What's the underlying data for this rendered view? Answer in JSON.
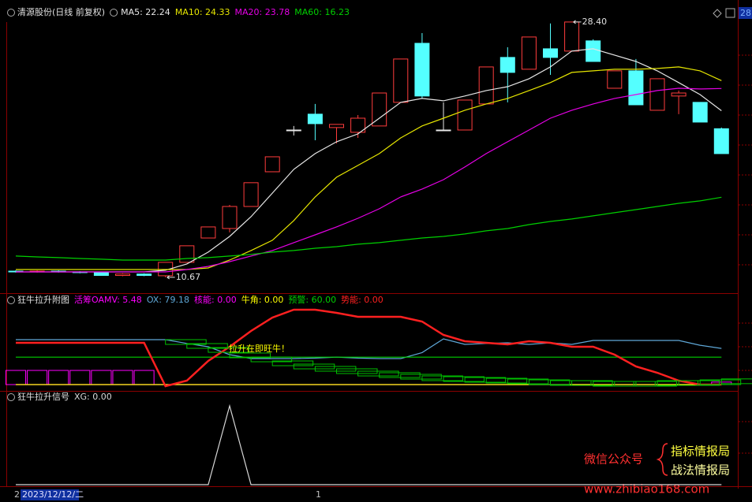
{
  "chart_data": [
    {
      "type": "candlestick",
      "title": "清源股份(日线 前复权)",
      "price_tag": "28",
      "up_color": "#ff3c3c",
      "down_color": "#54ffff",
      "flat_color": "#e8e8e8",
      "ylim": [
        9.57,
        29.49
      ],
      "open": [
        11.1,
        11.05,
        11.1,
        11.05,
        11.0,
        10.8,
        10.9,
        10.78,
        11.71,
        13.4,
        14.06,
        15.59,
        18.0,
        20.9,
        22.0,
        21.07,
        20.74,
        21.18,
        22.82,
        26.92,
        20.9,
        20.9,
        22.71,
        25.94,
        25.12,
        26.54,
        26.38,
        27.09,
        23.8,
        25.01,
        22.27,
        23.26,
        22.82,
        20.99
      ],
      "high": [
        11.16,
        11.16,
        11.16,
        11.1,
        11.05,
        10.95,
        10.95,
        11.71,
        12.86,
        14.17,
        15.7,
        17.24,
        19.04,
        21.18,
        22.71,
        21.29,
        21.94,
        23.47,
        25.83,
        27.63,
        22.82,
        22.98,
        25.28,
        26.65,
        27.36,
        28.3,
        28.4,
        27.2,
        25.01,
        25.83,
        24.46,
        23.64,
        22.82,
        21.07
      ],
      "low": [
        11.0,
        11.0,
        11.0,
        10.95,
        10.78,
        10.75,
        10.75,
        10.67,
        11.71,
        13.4,
        13.79,
        15.59,
        18.0,
        20.52,
        20.19,
        19.97,
        20.35,
        21.18,
        22.82,
        23.09,
        20.9,
        20.9,
        22.71,
        22.82,
        25.12,
        24.73,
        26.38,
        25.66,
        23.8,
        22.65,
        22.27,
        22.0,
        21.45,
        19.26
      ],
      "close": [
        11.05,
        11.1,
        11.05,
        11.0,
        10.8,
        10.9,
        10.8,
        11.71,
        12.86,
        14.17,
        15.59,
        17.24,
        19.04,
        20.9,
        21.34,
        21.29,
        21.72,
        23.47,
        25.83,
        23.26,
        20.9,
        22.98,
        25.28,
        24.9,
        27.36,
        25.94,
        28.4,
        25.66,
        25.01,
        22.65,
        24.46,
        23.47,
        21.45,
        19.26
      ],
      "max_label": {
        "value": 28.4,
        "label": "28.40"
      },
      "min_label": {
        "value": 10.67,
        "label": "10.67"
      },
      "series": [
        {
          "label": "MA5: 22.24",
          "color": "#e6e6e6",
          "values": [
            11.05,
            11.05,
            11.05,
            11.05,
            11.05,
            11.05,
            11.05,
            11.16,
            11.6,
            12.42,
            13.51,
            14.88,
            16.52,
            18.17,
            19.26,
            20.08,
            20.63,
            21.72,
            22.82,
            23.09,
            22.93,
            23.26,
            23.64,
            23.91,
            24.46,
            25.28,
            26.38,
            26.54,
            26.1,
            25.66,
            25.01,
            24.19,
            23.36,
            22.24
          ]
        },
        {
          "label": "MA10: 24.33",
          "color": "#e6e600",
          "values": [
            11.21,
            11.21,
            11.21,
            11.21,
            11.21,
            11.21,
            11.21,
            11.21,
            11.21,
            11.32,
            11.87,
            12.53,
            13.24,
            14.61,
            16.25,
            17.62,
            18.44,
            19.26,
            20.35,
            21.18,
            21.72,
            22.27,
            22.71,
            23.09,
            23.64,
            24.19,
            24.9,
            25.01,
            25.12,
            25.12,
            25.17,
            25.28,
            25.01,
            24.33
          ]
        },
        {
          "label": "MA20: 23.78",
          "color": "#e600e6",
          "values": [
            11.05,
            11.05,
            11.05,
            11.05,
            11.05,
            11.05,
            11.05,
            11.05,
            11.21,
            11.43,
            11.76,
            12.15,
            12.53,
            13.08,
            13.62,
            14.17,
            14.77,
            15.43,
            16.25,
            16.8,
            17.45,
            18.33,
            19.26,
            20.08,
            20.9,
            21.72,
            22.27,
            22.71,
            23.09,
            23.36,
            23.64,
            23.8,
            23.75,
            23.78
          ]
        },
        {
          "label": "MA60: 16.23",
          "color": "#00d000",
          "values": [
            12.15,
            12.09,
            12.04,
            11.98,
            11.93,
            11.87,
            11.87,
            11.87,
            11.98,
            12.04,
            12.15,
            12.26,
            12.42,
            12.53,
            12.69,
            12.8,
            12.97,
            13.08,
            13.24,
            13.4,
            13.51,
            13.68,
            13.9,
            14.06,
            14.33,
            14.55,
            14.72,
            14.94,
            15.16,
            15.37,
            15.59,
            15.81,
            15.98,
            16.23
          ]
        }
      ]
    },
    {
      "type": "line",
      "title": "狂牛拉升附图",
      "annotation": "拉升在即旺牛！",
      "annotation_color": "#ffff00",
      "ylim": [
        -6.9,
        169
      ],
      "series": [
        {
          "label": "活筹OAMV: 5.48",
          "color": "#ff00ff",
          "style": "bars",
          "values": [
            31,
            31,
            31,
            31,
            31,
            31,
            31,
            0,
            0,
            0,
            0,
            0,
            0,
            0,
            0,
            0,
            0,
            0,
            0,
            0,
            0,
            0,
            0,
            0,
            0,
            0,
            0,
            0,
            0,
            0,
            0,
            0,
            0,
            5.48
          ]
        },
        {
          "label": "OX: 79.18",
          "color": "#5fa8d8",
          "style": "line",
          "values": [
            98.3,
            98.3,
            98.3,
            98.3,
            98.3,
            98.3,
            98.3,
            98.3,
            90,
            82.8,
            65.5,
            56.9,
            56.9,
            56.9,
            58,
            60,
            58,
            56.9,
            56.9,
            70,
            100,
            88,
            90,
            91.4,
            87.9,
            91.4,
            87.9,
            96.6,
            96.6,
            96.6,
            96.6,
            96.6,
            86,
            79.18
          ]
        },
        {
          "label": "核能: 0.00",
          "color": "#ff00ff",
          "style": "line",
          "values": [
            0,
            0,
            0,
            0,
            0,
            0,
            0,
            0,
            0,
            0,
            0,
            0,
            0,
            0,
            0,
            0,
            0,
            0,
            0,
            0,
            0,
            0,
            0,
            0,
            0,
            0,
            0,
            0,
            0,
            0,
            0,
            0,
            0,
            0
          ]
        },
        {
          "label": "牛角: 0.00",
          "color": "#ffff00",
          "style": "line",
          "values": [
            0,
            0,
            0,
            0,
            0,
            0,
            0,
            0,
            0,
            0,
            0,
            0,
            0,
            0,
            0,
            0,
            0,
            0,
            0,
            0,
            0,
            0,
            0,
            0,
            0,
            0,
            0,
            0,
            0,
            0,
            0,
            0,
            0,
            0
          ]
        },
        {
          "label": "预警: 60.00",
          "color": "#00d000",
          "style": "line",
          "values": [
            60,
            60,
            60,
            60,
            60,
            60,
            60,
            60,
            60,
            60,
            60,
            60,
            60,
            60,
            60,
            60,
            60,
            60,
            60,
            60,
            60,
            60,
            60,
            60,
            60,
            60,
            60,
            60,
            60,
            60,
            60,
            60,
            60,
            60
          ]
        },
        {
          "label": "势能: 0.00",
          "color": "#ff2020",
          "style": "thick",
          "values": [
            91.4,
            91.4,
            91.4,
            91.4,
            91.4,
            91.4,
            91.4,
            -3.4,
            8.6,
            51.7,
            82.8,
            117.2,
            146.6,
            163.8,
            163.8,
            156.9,
            148.3,
            148.3,
            148.3,
            137.9,
            108.6,
            94.8,
            91.4,
            87.9,
            94.8,
            91.4,
            82.8,
            82.8,
            65.5,
            39.7,
            25.9,
            8.6,
            0,
            0
          ]
        },
        {
          "color": "#00c000",
          "style": "steps",
          "values": [
            null,
            null,
            null,
            null,
            null,
            null,
            null,
            91.4,
            82.8,
            74.1,
            62.1,
            53.4,
            44.8,
            37.9,
            32.8,
            27.6,
            22.4,
            19.0,
            15.5,
            12.1,
            10.3,
            8.6,
            6.9,
            5.2,
            3.4,
            1.7,
            1.7,
            0,
            0,
            0,
            1.7,
            1.7,
            3.4,
            5.48
          ]
        }
      ]
    },
    {
      "type": "line",
      "title": "狂牛拉升信号",
      "ylim": [
        0,
        1.1
      ],
      "series": [
        {
          "label": "XG: 0.00",
          "color": "#d8d8d8",
          "style": "line",
          "values": [
            0,
            0,
            0,
            0,
            0,
            0,
            0,
            0,
            0,
            0,
            1,
            0,
            0,
            0,
            0,
            0,
            0,
            0,
            0,
            0,
            0,
            0,
            0,
            0,
            0,
            0,
            0,
            0,
            0,
            0,
            0,
            0,
            0,
            0
          ]
        }
      ]
    }
  ],
  "footer": {
    "left_mark": "2",
    "date": "2023/12/12/二",
    "mid_mark": "1"
  },
  "watermark": {
    "prefix": "微信公众号",
    "line1": "指标情报局",
    "line2": "战法情报局",
    "url": "www.zhibiao168.com"
  }
}
